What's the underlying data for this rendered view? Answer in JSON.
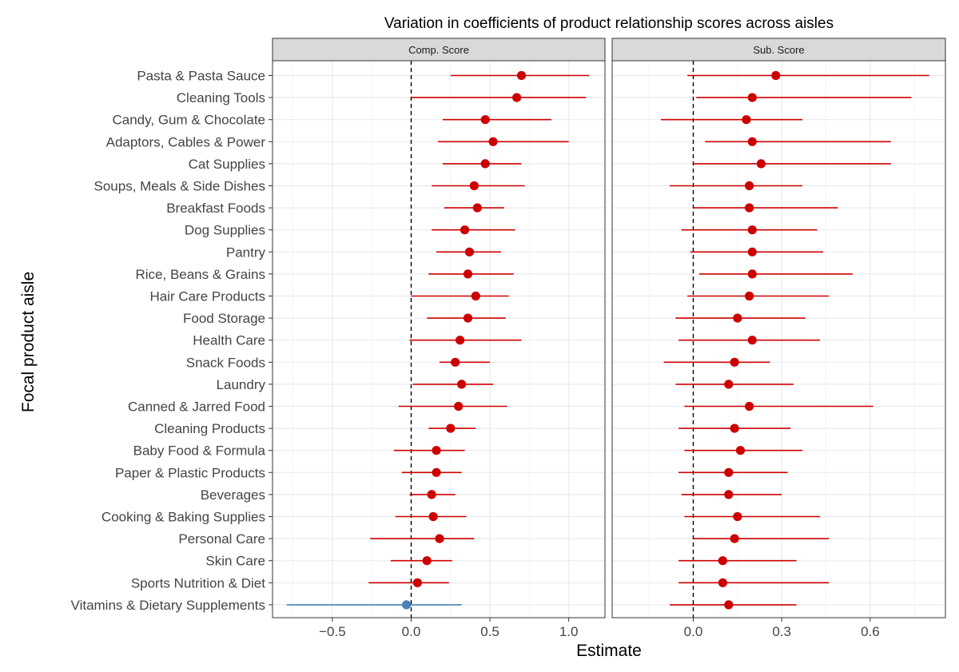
{
  "chart_data": {
    "type": "scatter",
    "subtype": "coefficient plot with confidence intervals, faceted",
    "title": "Variation in coefficients of product relationship scores across aisles",
    "xlabel": "Estimate",
    "ylabel": "Focal product aisle",
    "reference_line_x": 0,
    "grid": true,
    "legend": "none",
    "colors": {
      "significant": "#cc0000",
      "not_significant": "#4682b4",
      "strip_bg": "#d9d9d9",
      "grid": "#ebebeb"
    },
    "categories": [
      "Pasta & Pasta Sauce",
      "Cleaning Tools",
      "Candy, Gum & Chocolate",
      "Adaptors, Cables & Power",
      "Cat Supplies",
      "Soups, Meals & Side Dishes",
      "Breakfast Foods",
      "Dog Supplies",
      "Pantry",
      "Rice, Beans & Grains",
      "Hair Care Products",
      "Food Storage",
      "Health Care",
      "Snack Foods",
      "Laundry",
      "Canned & Jarred Food",
      "Cleaning Products",
      "Baby Food & Formula",
      "Paper & Plastic Products",
      "Beverages",
      "Cooking & Baking Supplies",
      "Personal Care",
      "Skin Care",
      "Sports Nutrition & Diet",
      "Vitamins & Dietary Supplements"
    ],
    "panels": [
      {
        "name": "Comp. Score",
        "xlim": [
          -0.88,
          1.23
        ],
        "ticks": [
          -0.5,
          0.0,
          0.5,
          1.0
        ],
        "tick_labels": [
          "−0.5",
          "0.0",
          "0.5",
          "1.0"
        ],
        "estimates": [
          0.7,
          0.67,
          0.47,
          0.52,
          0.47,
          0.4,
          0.42,
          0.34,
          0.37,
          0.36,
          0.41,
          0.36,
          0.31,
          0.28,
          0.32,
          0.3,
          0.25,
          0.16,
          0.16,
          0.13,
          0.14,
          0.18,
          0.1,
          0.04,
          -0.03
        ],
        "lower": [
          0.25,
          0.0,
          0.2,
          0.17,
          0.2,
          0.13,
          0.21,
          0.13,
          0.16,
          0.11,
          0.0,
          0.1,
          -0.01,
          0.18,
          0.01,
          -0.08,
          0.11,
          -0.11,
          -0.06,
          -0.01,
          -0.1,
          -0.26,
          -0.13,
          -0.27,
          -0.79
        ],
        "upper": [
          1.13,
          1.11,
          0.89,
          1.0,
          0.7,
          0.72,
          0.59,
          0.66,
          0.57,
          0.65,
          0.62,
          0.6,
          0.7,
          0.5,
          0.52,
          0.61,
          0.41,
          0.34,
          0.32,
          0.28,
          0.35,
          0.4,
          0.26,
          0.24,
          0.32
        ],
        "significant": [
          true,
          true,
          true,
          true,
          true,
          true,
          true,
          true,
          true,
          true,
          true,
          true,
          true,
          true,
          true,
          true,
          true,
          true,
          true,
          true,
          true,
          true,
          true,
          true,
          false
        ]
      },
      {
        "name": "Sub. Score",
        "xlim": [
          -0.275,
          0.855
        ],
        "ticks": [
          0.0,
          0.3,
          0.6
        ],
        "tick_labels": [
          "0.0",
          "0.3",
          "0.6"
        ],
        "estimates": [
          0.28,
          0.2,
          0.18,
          0.2,
          0.23,
          0.19,
          0.19,
          0.2,
          0.2,
          0.2,
          0.19,
          0.15,
          0.2,
          0.14,
          0.12,
          0.19,
          0.14,
          0.16,
          0.12,
          0.12,
          0.15,
          0.14,
          0.1,
          0.1,
          0.12
        ],
        "lower": [
          -0.02,
          0.01,
          -0.11,
          0.04,
          0.0,
          -0.08,
          0.0,
          -0.04,
          -0.01,
          0.02,
          -0.02,
          -0.06,
          -0.05,
          -0.1,
          -0.06,
          -0.03,
          -0.05,
          -0.03,
          -0.05,
          -0.04,
          -0.03,
          0.0,
          -0.05,
          -0.05,
          -0.08
        ],
        "upper": [
          0.8,
          0.74,
          0.37,
          0.67,
          0.67,
          0.37,
          0.49,
          0.42,
          0.44,
          0.54,
          0.46,
          0.38,
          0.43,
          0.26,
          0.34,
          0.61,
          0.33,
          0.37,
          0.32,
          0.3,
          0.43,
          0.46,
          0.35,
          0.46,
          0.35
        ],
        "significant": [
          true,
          true,
          true,
          true,
          true,
          true,
          true,
          true,
          true,
          true,
          true,
          true,
          true,
          true,
          true,
          true,
          true,
          true,
          true,
          true,
          true,
          true,
          true,
          true,
          true
        ]
      }
    ]
  }
}
